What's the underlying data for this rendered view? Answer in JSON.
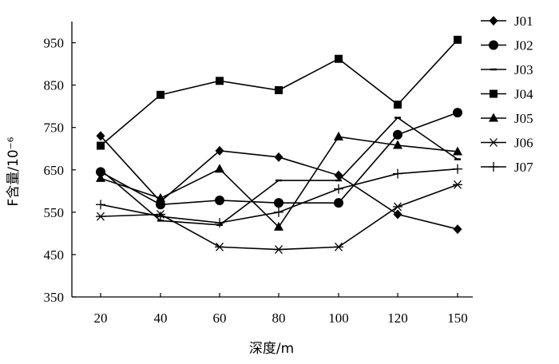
{
  "chart_data": {
    "type": "line",
    "x": [
      20,
      40,
      60,
      80,
      100,
      120,
      150
    ],
    "xticks": [
      "20",
      "40",
      "60",
      "80",
      "100",
      "120",
      "150"
    ],
    "ylim": [
      350,
      1000
    ],
    "yticks": [
      350,
      450,
      550,
      650,
      750,
      850,
      950
    ],
    "xlabel": "深度/m",
    "ylabel": "F含量/10⁻⁶",
    "legend_position": "top-right",
    "grid": false,
    "series": [
      {
        "name": "J01",
        "marker": "diamond",
        "values": [
          730,
          575,
          695,
          680,
          637,
          545,
          510
        ]
      },
      {
        "name": "J02",
        "marker": "circle",
        "values": [
          645,
          568,
          578,
          572,
          572,
          733,
          785
        ]
      },
      {
        "name": "J03",
        "marker": "dash",
        "values": [
          650,
          530,
          520,
          625,
          625,
          773,
          675
        ]
      },
      {
        "name": "J04",
        "marker": "square",
        "values": [
          707,
          827,
          860,
          838,
          912,
          804,
          957
        ]
      },
      {
        "name": "J05",
        "marker": "triangle",
        "values": [
          630,
          583,
          652,
          515,
          728,
          708,
          693
        ]
      },
      {
        "name": "J06",
        "marker": "asterisk",
        "values": [
          540,
          545,
          468,
          462,
          468,
          563,
          615
        ]
      },
      {
        "name": "J07",
        "marker": "plus",
        "values": [
          568,
          540,
          525,
          550,
          605,
          641,
          652
        ]
      }
    ]
  }
}
